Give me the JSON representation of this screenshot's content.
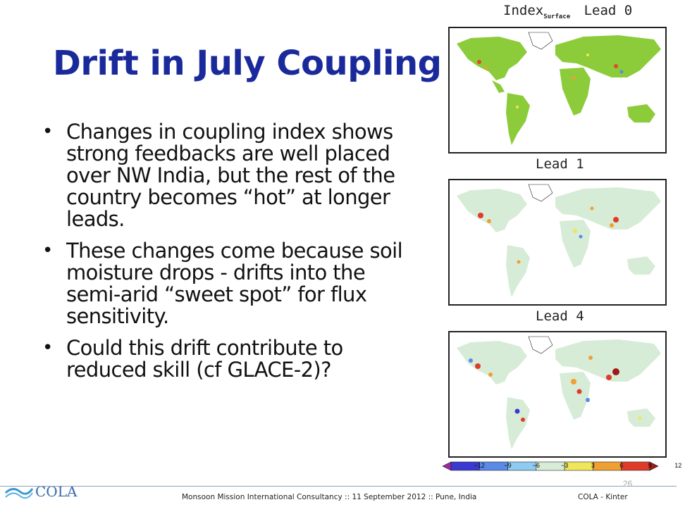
{
  "slide": {
    "title": "Drift in July Coupling",
    "bullets": [
      "Changes in coupling index shows strong feedbacks are well placed over NW India, but the rest of the country becomes “hot” at longer leads.",
      "These changes come because soil moisture drops - drifts into the semi-arid “sweet spot” for flux sensitivity.",
      "Could this drift contribute to reduced skill (cf GLACE-2)?"
    ]
  },
  "maps": {
    "panel1": {
      "label_main": "Index",
      "label_sub": "Surface",
      "label_lead": "Lead 0"
    },
    "panel2": {
      "label": "Lead 1"
    },
    "panel3": {
      "label": "Lead 4"
    }
  },
  "colorbar": {
    "ticks": [
      "−12",
      "−9",
      "−6",
      "−3",
      "3",
      "6",
      "9",
      "12"
    ],
    "colors": [
      "#9c2a9c",
      "#3a3ad0",
      "#5a8ae6",
      "#8ecbf0",
      "#d7ecd7",
      "#f0e65a",
      "#f0a030",
      "#e03a2a",
      "#a01818"
    ]
  },
  "footer": {
    "text": "Monsoon Mission International Consultancy :: 11 September 2012 :: Pune, India",
    "right": "COLA - Kinter",
    "page": "26",
    "logo": "COLA"
  }
}
